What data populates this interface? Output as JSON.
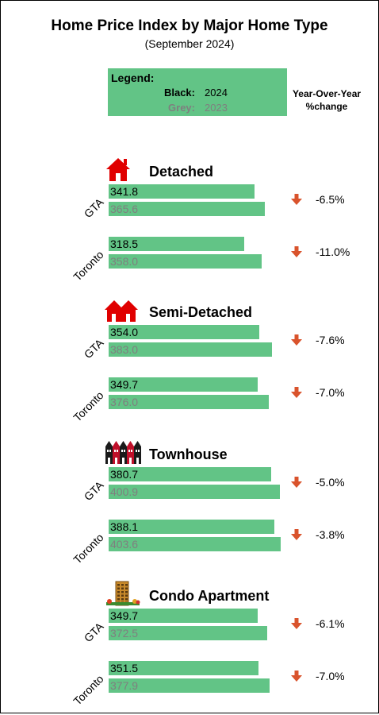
{
  "chart_data": {
    "type": "bar",
    "title": "Home Price Index by Major Home Type",
    "subtitle": "(September 2024)",
    "legend": {
      "title": "Legend:",
      "entries": [
        {
          "key": "Black:",
          "value": "2024",
          "color": "#000000"
        },
        {
          "key": "Grey:",
          "value": "2023",
          "color": "#7f7f7f"
        }
      ]
    },
    "yoy_header_line1": "Year-Over-Year",
    "yoy_header_line2": "%change",
    "bar_color": "#62c486",
    "arrow_color": "#d9532c",
    "xlim": [
      0,
      420
    ],
    "home_types": [
      {
        "name": "Detached",
        "icon": "detached-house-icon",
        "groups": [
          {
            "label": "GTA",
            "current": 341.8,
            "current_label": "341.8",
            "previous": 365.6,
            "previous_label": "365.6",
            "change": "-6.5%"
          },
          {
            "label": "Toronto",
            "current": 318.5,
            "current_label": "318.5",
            "previous": 358.0,
            "previous_label": "358.0",
            "change": "-11.0%"
          }
        ]
      },
      {
        "name": "Semi-Detached",
        "icon": "semi-detached-house-icon",
        "groups": [
          {
            "label": "GTA",
            "current": 354.0,
            "current_label": "354.0",
            "previous": 383.0,
            "previous_label": "383.0",
            "change": "-7.6%"
          },
          {
            "label": "Toronto",
            "current": 349.7,
            "current_label": "349.7",
            "previous": 376.0,
            "previous_label": "376.0",
            "change": "-7.0%"
          }
        ]
      },
      {
        "name": "Townhouse",
        "icon": "townhouse-icon",
        "groups": [
          {
            "label": "GTA",
            "current": 380.7,
            "current_label": "380.7",
            "previous": 400.9,
            "previous_label": "400.9",
            "change": "-5.0%"
          },
          {
            "label": "Toronto",
            "current": 388.1,
            "current_label": "388.1",
            "previous": 403.6,
            "previous_label": "403.6",
            "change": "-3.8%"
          }
        ]
      },
      {
        "name": "Condo Apartment",
        "icon": "condo-apartment-icon",
        "groups": [
          {
            "label": "GTA",
            "current": 349.7,
            "current_label": "349.7",
            "previous": 372.5,
            "previous_label": "372.5",
            "change": "-6.1%"
          },
          {
            "label": "Toronto",
            "current": 351.5,
            "current_label": "351.5",
            "previous": 377.9,
            "previous_label": "377.9",
            "change": "-7.0%"
          }
        ]
      }
    ]
  }
}
